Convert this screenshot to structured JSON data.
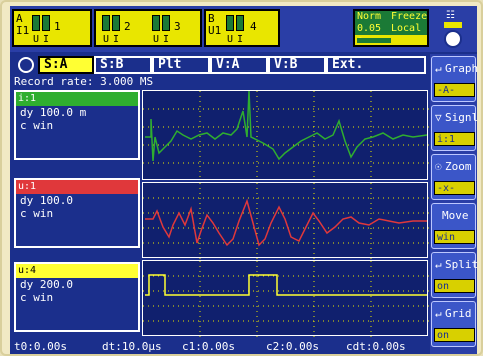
{
  "top": {
    "group1": {
      "tag": "A I1",
      "channels": [
        "1"
      ]
    },
    "group2_labels": [
      "2",
      "3"
    ],
    "group3": {
      "tag": "B U1",
      "channels": [
        "4"
      ]
    },
    "u_label": "U",
    "i_label": "I",
    "mode": {
      "norm": "Norm",
      "freeze": "Freeze",
      "time": "0.05 s",
      "local": "Local"
    }
  },
  "tabs": [
    "S:A",
    "S:B",
    "Plt",
    "V:A",
    "V:B",
    "Ext."
  ],
  "record_rate": "Record rate: 3.000 MS",
  "channels": [
    {
      "name": "i:1",
      "dy": "dy 100.0 m",
      "c": "c   win",
      "color": "#2fae2f"
    },
    {
      "name": "u:1",
      "dy": "dy 100.0",
      "c": "c   win",
      "color": "#e0383b"
    },
    {
      "name": "u:4",
      "dy": "dy 200.0",
      "c": "c   win",
      "color": "#ffff33"
    }
  ],
  "bottom": {
    "t0": "t0:0.00s",
    "dt": "dt:10.0µs",
    "c1": "c1:0.00s",
    "c2": "c2:0.00s",
    "cdt": "cdt:0.00s"
  },
  "side_menu": [
    {
      "title": "Graph",
      "value": "-A-",
      "icon": "return-arrow-icon"
    },
    {
      "title": "Signl",
      "value": "i:1",
      "icon": "down-triangle-icon"
    },
    {
      "title": "Zoom",
      "value": "-x-",
      "icon": "zoom-icon"
    },
    {
      "title": "Move",
      "value": "win",
      "icon": ""
    },
    {
      "title": "Split",
      "value": "on",
      "icon": "return-arrow-icon"
    },
    {
      "title": "Grid",
      "value": "on",
      "icon": "return-arrow-icon"
    }
  ],
  "colors": {
    "screen": "#1b2f8c",
    "accent_yellow": "#e9e600",
    "green": "#2fae2f",
    "red": "#e0383b",
    "yellow": "#ffff33"
  }
}
